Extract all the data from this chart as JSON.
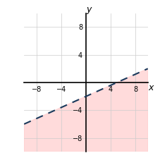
{
  "xlim": [
    -10,
    10
  ],
  "ylim": [
    -10,
    10
  ],
  "xticks": [
    -8,
    -4,
    4,
    8
  ],
  "yticks": [
    -8,
    -4,
    4,
    8
  ],
  "x0tick": 0,
  "slope": 0.4,
  "intercept": -2,
  "line_color": "#1a3a5c",
  "shade_color": "#ffcccc",
  "shade_alpha": 0.7,
  "xlabel": "x",
  "ylabel": "y",
  "figsize": [
    2.28,
    2.34
  ],
  "dpi": 100,
  "tick_fontsize": 7,
  "label_fontsize": 9
}
